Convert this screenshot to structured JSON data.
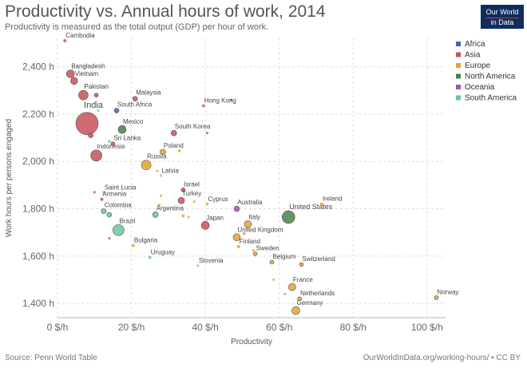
{
  "header": {
    "title": "Productivity vs. Annual hours of work, 2014",
    "subtitle": "Productivity is measured as the total output (GDP) per hour of work."
  },
  "logo": {
    "line1": "Our World",
    "line2": "in Data"
  },
  "footer": {
    "source": "Source: Penn World Table",
    "credit": "OurWorldInData.org/working-hours/ • CC BY"
  },
  "colors": {
    "Africa": "#3d6bb3",
    "Asia": "#c8515b",
    "Europe": "#e3a232",
    "North America": "#4b7f4b",
    "Oceania": "#a157b6",
    "South America": "#6bc59c"
  },
  "chart_data": {
    "type": "scatter",
    "title": "Productivity vs. Annual hours of work, 2014",
    "subtitle": "Productivity is measured as the total output (GDP) per hour of work.",
    "xlabel": "Productivity",
    "ylabel": "Work hours per persons engaged",
    "xlim": [
      0,
      105
    ],
    "ylim": [
      1340,
      2520
    ],
    "xticks": [
      0,
      20,
      40,
      60,
      80,
      100
    ],
    "xtick_labels": [
      "0 $/h",
      "20 $/h",
      "40 $/h",
      "60 $/h",
      "80 $/h",
      "100 $/h"
    ],
    "yticks": [
      1400,
      1600,
      1800,
      2000,
      2200,
      2400
    ],
    "ytick_labels": [
      "1,400 h",
      "1,600 h",
      "1,800 h",
      "2,000 h",
      "2,200 h",
      "2,400 h"
    ],
    "legend": [
      "Africa",
      "Asia",
      "Europe",
      "North America",
      "Oceania",
      "South America"
    ],
    "legend_position": "right",
    "grid": true,
    "points": [
      {
        "label": "Cambodia",
        "x": 2.0,
        "y": 2510,
        "region": "Asia",
        "size": 2
      },
      {
        "label": "Bangladesh",
        "x": 3.5,
        "y": 2370,
        "region": "Asia",
        "size": 5
      },
      {
        "label": "Vietnam",
        "x": 4.5,
        "y": 2340,
        "region": "Asia",
        "size": 4.5
      },
      {
        "label": "Pakistan",
        "x": 7.0,
        "y": 2280,
        "region": "Asia",
        "size": 6
      },
      {
        "label": "",
        "x": 10.5,
        "y": 2280,
        "region": "Asia",
        "size": 2.5
      },
      {
        "label": "India",
        "x": 8.0,
        "y": 2160,
        "region": "Asia",
        "size": 14
      },
      {
        "label": "",
        "x": 9.0,
        "y": 2110,
        "region": "Asia",
        "size": 3
      },
      {
        "label": "",
        "x": 11.0,
        "y": 2215,
        "region": "South America",
        "size": 1.5
      },
      {
        "label": "South Africa",
        "x": 16.0,
        "y": 2215,
        "region": "Africa",
        "size": 3
      },
      {
        "label": "Malaysia",
        "x": 21.0,
        "y": 2265,
        "region": "Asia",
        "size": 3
      },
      {
        "label": "Hong Kong",
        "x": 39.5,
        "y": 2235,
        "region": "Asia",
        "size": 1.8
      },
      {
        "label": "",
        "x": 47.0,
        "y": 2260,
        "region": "Asia",
        "size": 1.5
      },
      {
        "label": "Mexico",
        "x": 17.5,
        "y": 2135,
        "region": "North America",
        "size": 5
      },
      {
        "label": "South Korea",
        "x": 31.5,
        "y": 2120,
        "region": "Asia",
        "size": 3.5
      },
      {
        "label": "",
        "x": 40.5,
        "y": 2120,
        "region": "Asia",
        "size": 1.5
      },
      {
        "label": "Sri Lanka",
        "x": 15.0,
        "y": 2075,
        "region": "Asia",
        "size": 2.5
      },
      {
        "label": "",
        "x": 14.0,
        "y": 2085,
        "region": "South America",
        "size": 1.8
      },
      {
        "label": "Indonesia",
        "x": 10.5,
        "y": 2025,
        "region": "Asia",
        "size": 7
      },
      {
        "label": "Poland",
        "x": 28.5,
        "y": 2040,
        "region": "Europe",
        "size": 3.5
      },
      {
        "label": "",
        "x": 33.0,
        "y": 2045,
        "region": "Europe",
        "size": 1.8
      },
      {
        "label": "Russia",
        "x": 24.0,
        "y": 1985,
        "region": "Europe",
        "size": 6
      },
      {
        "label": "Latvia",
        "x": 28.0,
        "y": 1940,
        "region": "Europe",
        "size": 1.5
      },
      {
        "label": "",
        "x": 27.0,
        "y": 1960,
        "region": "Europe",
        "size": 1.5
      },
      {
        "label": "Saint Lucia",
        "x": 12.5,
        "y": 1870,
        "region": "South America",
        "size": 1.5
      },
      {
        "label": "",
        "x": 10.0,
        "y": 1870,
        "region": "Asia",
        "size": 1.5
      },
      {
        "label": "Armenia",
        "x": 12.0,
        "y": 1840,
        "region": "Asia",
        "size": 2
      },
      {
        "label": "Israel",
        "x": 34.0,
        "y": 1880,
        "region": "Asia",
        "size": 2.5
      },
      {
        "label": "Turkey",
        "x": 33.5,
        "y": 1835,
        "region": "Asia",
        "size": 4
      },
      {
        "label": "",
        "x": 28.0,
        "y": 1855,
        "region": "Europe",
        "size": 1.5
      },
      {
        "label": "Cyprus",
        "x": 40.5,
        "y": 1820,
        "region": "Europe",
        "size": 1.8
      },
      {
        "label": "",
        "x": 37.0,
        "y": 1830,
        "region": "Europe",
        "size": 1.5
      },
      {
        "label": "Australia",
        "x": 48.5,
        "y": 1800,
        "region": "Oceania",
        "size": 3.5
      },
      {
        "label": "Ireland",
        "x": 71.5,
        "y": 1820,
        "region": "Europe",
        "size": 2
      },
      {
        "label": "Colombia",
        "x": 12.5,
        "y": 1790,
        "region": "South America",
        "size": 3
      },
      {
        "label": "",
        "x": 14.0,
        "y": 1775,
        "region": "South America",
        "size": 3
      },
      {
        "label": "Argentina",
        "x": 26.5,
        "y": 1775,
        "region": "South America",
        "size": 3.5
      },
      {
        "label": "",
        "x": 27.5,
        "y": 1815,
        "region": "Europe",
        "size": 1.8
      },
      {
        "label": "",
        "x": 34.0,
        "y": 1770,
        "region": "Europe",
        "size": 1.8
      },
      {
        "label": "",
        "x": 35.5,
        "y": 1765,
        "region": "Europe",
        "size": 1.5
      },
      {
        "label": "United States",
        "x": 62.5,
        "y": 1765,
        "region": "North America",
        "size": 8
      },
      {
        "label": "Brazil",
        "x": 16.5,
        "y": 1710,
        "region": "South America",
        "size": 7
      },
      {
        "label": "",
        "x": 14.0,
        "y": 1675,
        "region": "Asia",
        "size": 1.5
      },
      {
        "label": "Japan",
        "x": 40.0,
        "y": 1730,
        "region": "Asia",
        "size": 5
      },
      {
        "label": "Italy",
        "x": 51.5,
        "y": 1735,
        "region": "Europe",
        "size": 4.5
      },
      {
        "label": "United Kingdom",
        "x": 48.5,
        "y": 1680,
        "region": "Europe",
        "size": 4.5
      },
      {
        "label": "",
        "x": 50.5,
        "y": 1695,
        "region": "Europe",
        "size": 1.8
      },
      {
        "label": "Finland",
        "x": 49.0,
        "y": 1640,
        "region": "Europe",
        "size": 2
      },
      {
        "label": "Sweden",
        "x": 53.5,
        "y": 1610,
        "region": "Europe",
        "size": 2.5
      },
      {
        "label": "",
        "x": 53.0,
        "y": 1625,
        "region": "Europe",
        "size": 1.5
      },
      {
        "label": "Bulgaria",
        "x": 20.5,
        "y": 1645,
        "region": "Europe",
        "size": 2
      },
      {
        "label": "Uruguay",
        "x": 25.0,
        "y": 1595,
        "region": "South America",
        "size": 2
      },
      {
        "label": "Slovenia",
        "x": 38.0,
        "y": 1560,
        "region": "Europe",
        "size": 1.5
      },
      {
        "label": "Belgium",
        "x": 58.0,
        "y": 1575,
        "region": "Europe",
        "size": 2.5
      },
      {
        "label": "Switzerland",
        "x": 66.0,
        "y": 1565,
        "region": "Europe",
        "size": 2.5
      },
      {
        "label": "",
        "x": 58.5,
        "y": 1500,
        "region": "Europe",
        "size": 1.5
      },
      {
        "label": "France",
        "x": 63.5,
        "y": 1470,
        "region": "Europe",
        "size": 4.5
      },
      {
        "label": "",
        "x": 61.5,
        "y": 1440,
        "region": "Europe",
        "size": 1.5
      },
      {
        "label": "Netherlands",
        "x": 65.5,
        "y": 1420,
        "region": "Europe",
        "size": 2.5
      },
      {
        "label": "Germany",
        "x": 64.5,
        "y": 1370,
        "region": "Europe",
        "size": 5
      },
      {
        "label": "Norway",
        "x": 102.5,
        "y": 1425,
        "region": "Europe",
        "size": 2.5
      }
    ]
  }
}
